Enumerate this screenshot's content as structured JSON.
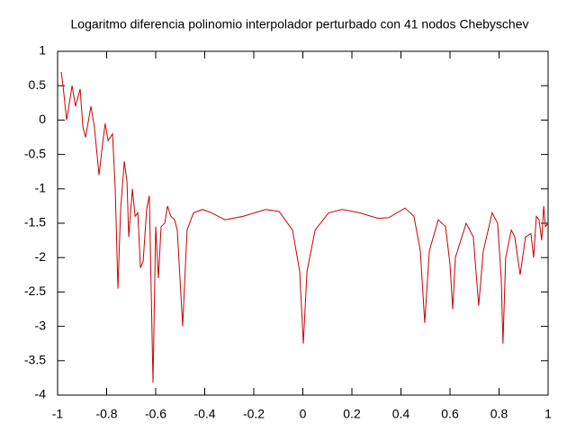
{
  "chart_data": {
    "type": "line",
    "title": "Logaritmo diferencia polinomio interpolador perturbado con 41 nodos Chebyschev",
    "x": [
      -0.985,
      -0.978,
      -0.963,
      -0.941,
      -0.927,
      -0.908,
      -0.897,
      -0.886,
      -0.864,
      -0.85,
      -0.831,
      -0.82,
      -0.806,
      -0.794,
      -0.776,
      -0.765,
      -0.754,
      -0.743,
      -0.728,
      -0.717,
      -0.71,
      -0.695,
      -0.684,
      -0.673,
      -0.662,
      -0.651,
      -0.637,
      -0.626,
      -0.611,
      -0.6,
      -0.589,
      -0.578,
      -0.563,
      -0.552,
      -0.538,
      -0.523,
      -0.512,
      -0.49,
      -0.472,
      -0.446,
      -0.409,
      -0.372,
      -0.317,
      -0.244,
      -0.152,
      -0.097,
      -0.042,
      -0.013,
      0.002,
      0.017,
      0.05,
      0.105,
      0.16,
      0.233,
      0.306,
      0.35,
      0.417,
      0.453,
      0.479,
      0.497,
      0.516,
      0.552,
      0.582,
      0.6,
      0.611,
      0.622,
      0.666,
      0.695,
      0.717,
      0.736,
      0.772,
      0.794,
      0.809,
      0.816,
      0.827,
      0.85,
      0.864,
      0.886,
      0.908,
      0.93,
      0.941,
      0.952,
      0.963,
      0.974,
      0.982,
      0.989,
      1.0
    ],
    "values": [
      0.7,
      0.5,
      0.0,
      0.5,
      0.2,
      0.45,
      -0.1,
      -0.25,
      0.2,
      -0.1,
      -0.8,
      -0.45,
      -0.05,
      -0.3,
      -0.2,
      -1.0,
      -2.45,
      -1.3,
      -0.6,
      -0.9,
      -1.7,
      -1.0,
      -1.4,
      -1.35,
      -2.15,
      -2.05,
      -1.3,
      -1.1,
      -3.82,
      -1.55,
      -2.3,
      -1.55,
      -1.5,
      -1.25,
      -1.4,
      -1.45,
      -1.6,
      -3.0,
      -1.6,
      -1.35,
      -1.3,
      -1.35,
      -1.45,
      -1.4,
      -1.3,
      -1.33,
      -1.6,
      -2.2,
      -3.25,
      -2.2,
      -1.6,
      -1.35,
      -1.3,
      -1.35,
      -1.43,
      -1.42,
      -1.28,
      -1.4,
      -1.9,
      -2.95,
      -1.9,
      -1.45,
      -1.55,
      -2.1,
      -2.75,
      -2.0,
      -1.5,
      -1.7,
      -2.7,
      -1.9,
      -1.35,
      -1.5,
      -2.3,
      -3.25,
      -2.0,
      -1.6,
      -1.7,
      -2.25,
      -1.7,
      -1.65,
      -2.0,
      -1.4,
      -1.45,
      -1.75,
      -1.25,
      -1.55,
      -1.5
    ],
    "color": "#cc0000",
    "xlim": [
      -1,
      1
    ],
    "xticks": [
      -1,
      -0.8,
      -0.6,
      -0.4,
      -0.2,
      0,
      0.2,
      0.4,
      0.6,
      0.8,
      1
    ],
    "ylim": [
      -4,
      1
    ],
    "yticks": [
      -4,
      -3.5,
      -3,
      -2.5,
      -2,
      -1.5,
      -1,
      -0.5,
      0,
      0.5,
      1
    ]
  }
}
